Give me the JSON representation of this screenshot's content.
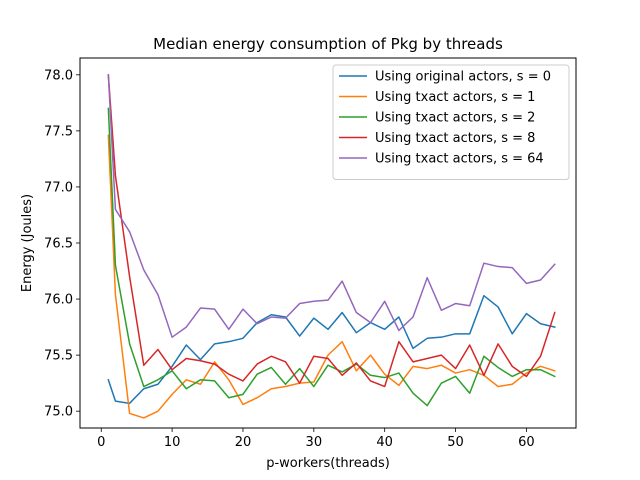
{
  "chart_data": {
    "type": "line",
    "title": "Median energy consumption of Pkg by threads",
    "xlabel": "p-workers(threads)",
    "ylabel": "Energy (Joules)",
    "xlim": [
      -3,
      67
    ],
    "ylim": [
      74.85,
      78.15
    ],
    "xticks": [
      0,
      10,
      20,
      30,
      40,
      50,
      60
    ],
    "yticks": [
      75.0,
      75.5,
      76.0,
      76.5,
      77.0,
      77.5,
      78.0
    ],
    "ytick_labels": [
      "75.0",
      "75.5",
      "76.0",
      "76.5",
      "77.0",
      "77.5",
      "78.0"
    ],
    "legend_position": "top-right",
    "grid": false,
    "x": [
      1,
      2,
      4,
      6,
      8,
      10,
      12,
      14,
      16,
      18,
      20,
      22,
      24,
      26,
      28,
      30,
      32,
      34,
      36,
      38,
      40,
      42,
      44,
      46,
      48,
      50,
      52,
      54,
      56,
      58,
      60,
      62,
      64
    ],
    "series": [
      {
        "name": "Using original actors, s = 0",
        "color": "#1f77b4",
        "values": [
          75.28,
          75.09,
          75.07,
          75.2,
          75.24,
          75.4,
          75.59,
          75.46,
          75.6,
          75.62,
          75.65,
          75.79,
          75.86,
          75.84,
          75.67,
          75.83,
          75.73,
          75.88,
          75.7,
          75.79,
          75.73,
          75.84,
          75.56,
          75.65,
          75.66,
          75.69,
          75.69,
          76.03,
          75.93,
          75.69,
          75.87,
          75.78,
          75.75
        ]
      },
      {
        "name": "Using txact actors, s = 1",
        "color": "#ff7f0e",
        "values": [
          77.46,
          76.04,
          74.98,
          74.94,
          75.0,
          75.15,
          75.28,
          75.24,
          75.44,
          75.28,
          75.06,
          75.12,
          75.2,
          75.22,
          75.25,
          75.26,
          75.5,
          75.62,
          75.36,
          75.5,
          75.33,
          75.23,
          75.4,
          75.38,
          75.41,
          75.34,
          75.37,
          75.32,
          75.22,
          75.24,
          75.34,
          75.4,
          75.36
        ]
      },
      {
        "name": "Using txact actors, s = 2",
        "color": "#2ca02c",
        "values": [
          77.7,
          76.3,
          75.6,
          75.22,
          75.28,
          75.36,
          75.2,
          75.28,
          75.27,
          75.12,
          75.15,
          75.33,
          75.39,
          75.24,
          75.38,
          75.22,
          75.41,
          75.35,
          75.42,
          75.32,
          75.3,
          75.34,
          75.16,
          75.05,
          75.25,
          75.31,
          75.16,
          75.49,
          75.39,
          75.31,
          75.37,
          75.37,
          75.31
        ]
      },
      {
        "name": "Using txact actors, s = 8",
        "color": "#d62728",
        "values": [
          78.0,
          77.1,
          76.2,
          75.41,
          75.55,
          75.37,
          75.47,
          75.45,
          75.42,
          75.33,
          75.27,
          75.42,
          75.49,
          75.44,
          75.25,
          75.49,
          75.47,
          75.32,
          75.43,
          75.27,
          75.22,
          75.62,
          75.44,
          75.47,
          75.5,
          75.38,
          75.59,
          75.32,
          75.6,
          75.4,
          75.31,
          75.49,
          75.88
        ]
      },
      {
        "name": "Using txact actors, s = 64",
        "color": "#9467bd",
        "values": [
          78.0,
          76.8,
          76.6,
          76.26,
          76.04,
          75.66,
          75.75,
          75.92,
          75.91,
          75.73,
          75.91,
          75.78,
          75.84,
          75.83,
          75.96,
          75.98,
          75.99,
          76.16,
          75.88,
          75.79,
          75.98,
          75.72,
          75.84,
          76.19,
          75.9,
          75.96,
          75.94,
          76.32,
          76.29,
          76.28,
          76.14,
          76.17,
          76.31
        ]
      }
    ]
  }
}
